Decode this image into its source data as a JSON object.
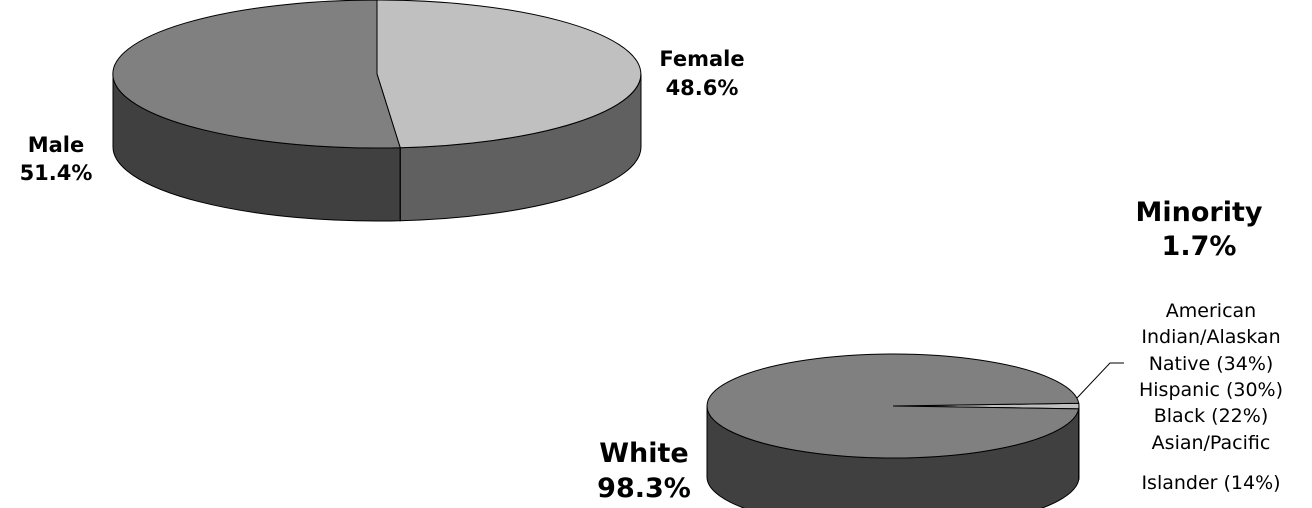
{
  "chart_data": [
    {
      "type": "pie",
      "style": "3d",
      "slices": [
        {
          "name": "Female",
          "value": 48.6,
          "label_name": "Female",
          "label_value": "48.6%",
          "top_color": "#c0c0c0",
          "side_color": "#606060"
        },
        {
          "name": "Male",
          "value": 51.4,
          "label_name": "Male",
          "label_value": "51.4%",
          "top_color": "#808080",
          "side_color": "#404040"
        }
      ]
    },
    {
      "type": "pie",
      "style": "3d",
      "slices": [
        {
          "name": "Minority",
          "value": 1.7,
          "label_name": "Minority",
          "label_value": "1.7%",
          "top_color": "#c0c0c0",
          "side_color": "#606060"
        },
        {
          "name": "White",
          "value": 98.3,
          "label_name": "White",
          "label_value": "98.3%",
          "top_color": "#808080",
          "side_color": "#404040"
        }
      ],
      "callout_breakdown": [
        "American",
        "Indian/Alaskan",
        "Native (34%)",
        "Hispanic (30%)",
        "Black (22%)",
        "Asian/Pacific",
        "Islander (14%)"
      ]
    }
  ]
}
